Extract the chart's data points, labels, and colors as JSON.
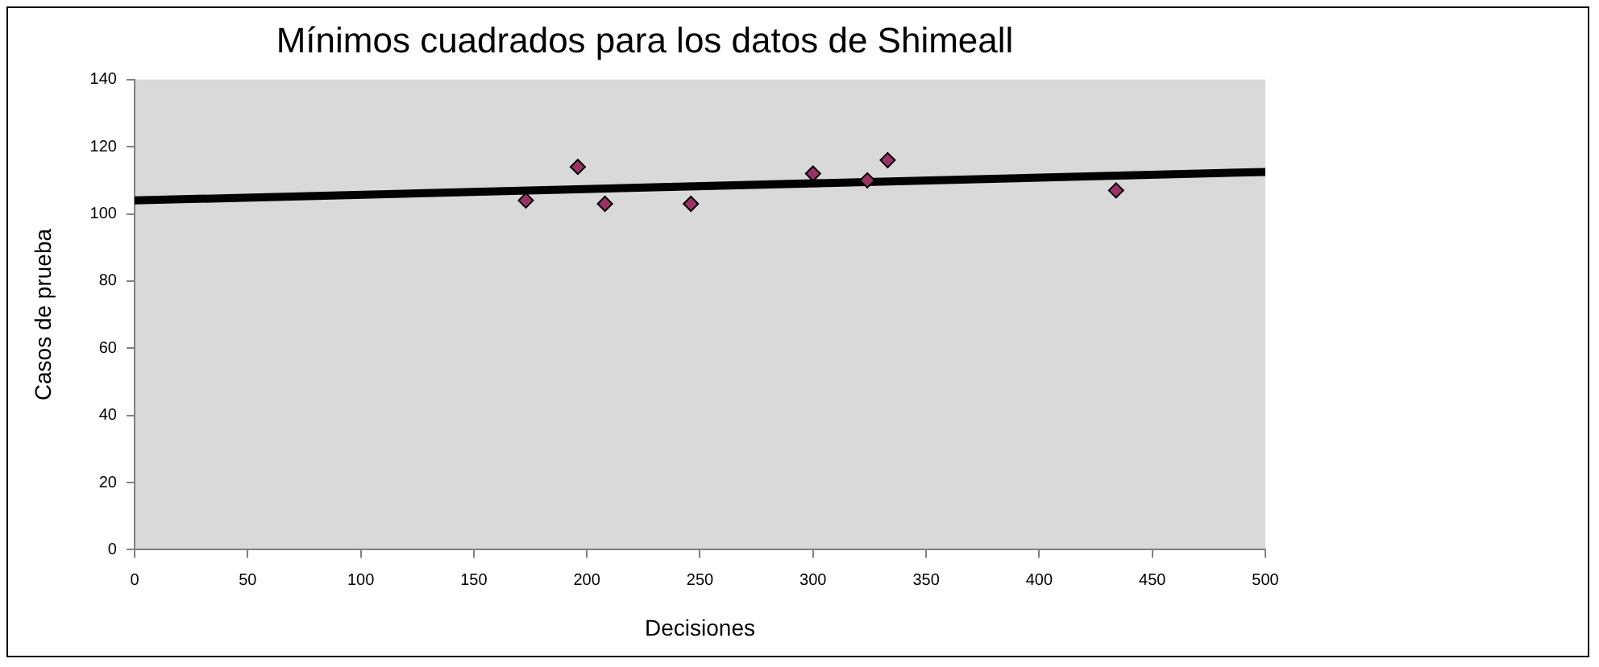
{
  "chart_data": {
    "type": "scatter",
    "title": "Mínimos cuadrados para los datos de Shimeall",
    "xlabel": "Decisiones",
    "ylabel": "Casos de prueba",
    "xlim": [
      0,
      500
    ],
    "xticks": [
      0,
      50,
      100,
      150,
      200,
      250,
      300,
      350,
      400,
      450,
      500
    ],
    "ylim": [
      0,
      140
    ],
    "yticks": [
      0,
      20,
      40,
      60,
      80,
      100,
      120,
      140
    ],
    "grid": false,
    "legend": false,
    "marker": "diamond",
    "series": [
      {
        "type": "scatter",
        "color": "#993366",
        "x": [
          173,
          196,
          208,
          246,
          300,
          324,
          333,
          434
        ],
        "values": [
          104,
          114,
          103,
          103,
          112,
          110,
          116,
          107
        ]
      },
      {
        "type": "line",
        "color": "#000000",
        "x": [
          0,
          500
        ],
        "values": [
          104,
          112.5
        ],
        "marker": "none",
        "line_style": "solid"
      }
    ]
  }
}
